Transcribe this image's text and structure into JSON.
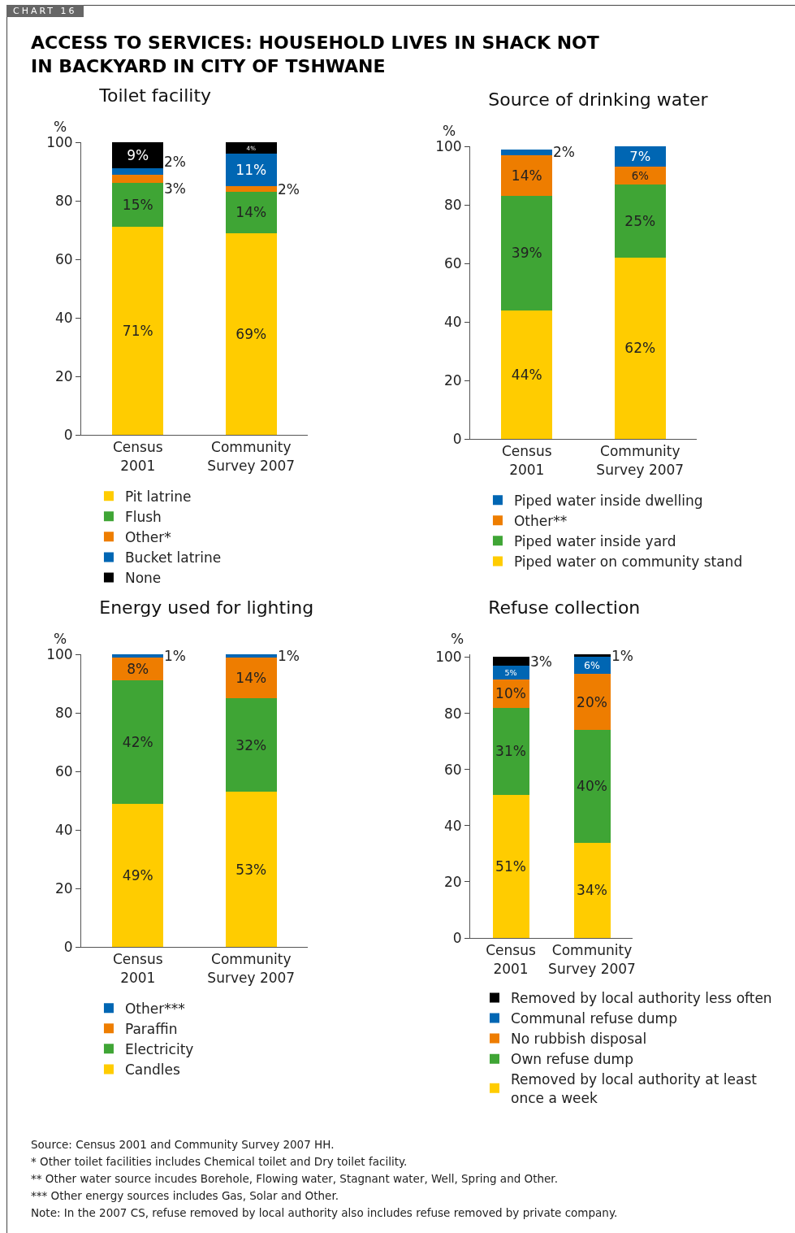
{
  "chart_data": [
    {
      "type": "other",
      "title": "ACCESS TO SERVICES: HOUSEHOLD LIVES IN SHACK NOT IN BACKYARD IN CITY OF TSHWANE",
      "annotations": [
        "CHART 16"
      ]
    },
    {
      "type": "bar",
      "stacked": true,
      "title": "Toilet facility",
      "ylabel": "%",
      "categories": [
        "Census\n2001",
        "Community\nSurvey 2007"
      ],
      "ylim": [
        0,
        100
      ],
      "yticks": [
        0,
        20,
        40,
        60,
        80,
        100
      ],
      "legend": "bottom",
      "series": [
        {
          "name": "Pit latrine",
          "color": "#ffcc00",
          "values": [
            71,
            69
          ],
          "value_labels": [
            "71%",
            "69%"
          ]
        },
        {
          "name": "Flush",
          "color": "#3fa535",
          "values": [
            15,
            14
          ],
          "value_labels": [
            "15%",
            "14%"
          ]
        },
        {
          "name": "Other*",
          "color": "#ee7d00",
          "values": [
            3,
            2
          ],
          "value_labels": [
            "3%",
            "2%"
          ]
        },
        {
          "name": "Bucket latrine",
          "color": "#0066b3",
          "values": [
            2,
            11
          ],
          "value_labels": [
            "2%",
            "11%"
          ]
        },
        {
          "name": "None",
          "color": "#000000",
          "values": [
            9,
            4
          ],
          "value_labels": [
            "9%",
            "4%"
          ]
        }
      ]
    },
    {
      "type": "bar",
      "stacked": true,
      "title": "Source of drinking water",
      "ylabel": "%",
      "categories": [
        "Census\n2001",
        "Community\nSurvey 2007"
      ],
      "ylim": [
        0,
        100
      ],
      "yticks": [
        0,
        20,
        40,
        60,
        80,
        100
      ],
      "legend": "bottom",
      "series": [
        {
          "name": "Piped water on community stand",
          "color": "#ffcc00",
          "values": [
            44,
            62
          ],
          "value_labels": [
            "44%",
            "62%"
          ]
        },
        {
          "name": "Piped water inside yard",
          "color": "#3fa535",
          "values": [
            39,
            25
          ],
          "value_labels": [
            "39%",
            "25%"
          ]
        },
        {
          "name": "Other**",
          "color": "#ee7d00",
          "values": [
            14,
            6
          ],
          "value_labels": [
            "14%",
            "6%"
          ]
        },
        {
          "name": "Piped water inside dwelling",
          "color": "#0066b3",
          "values": [
            2,
            7
          ],
          "value_labels": [
            "2%",
            "7%"
          ]
        }
      ]
    },
    {
      "type": "bar",
      "stacked": true,
      "title": "Energy used for lighting",
      "ylabel": "%",
      "categories": [
        "Census\n2001",
        "Community\nSurvey 2007"
      ],
      "ylim": [
        0,
        100
      ],
      "yticks": [
        0,
        20,
        40,
        60,
        80,
        100
      ],
      "legend": "bottom",
      "series": [
        {
          "name": "Candles",
          "color": "#ffcc00",
          "values": [
            49,
            53
          ],
          "value_labels": [
            "49%",
            "53%"
          ]
        },
        {
          "name": "Electricity",
          "color": "#3fa535",
          "values": [
            42,
            32
          ],
          "value_labels": [
            "42%",
            "32%"
          ]
        },
        {
          "name": "Paraffin",
          "color": "#ee7d00",
          "values": [
            8,
            14
          ],
          "value_labels": [
            "8%",
            "14%"
          ]
        },
        {
          "name": "Other***",
          "color": "#0066b3",
          "values": [
            1,
            1
          ],
          "value_labels": [
            "1%",
            "1%"
          ]
        }
      ]
    },
    {
      "type": "bar",
      "stacked": true,
      "title": "Refuse collection",
      "ylabel": "%",
      "categories": [
        "Census\n2001",
        "Community\nSurvey 2007"
      ],
      "ylim": [
        0,
        101
      ],
      "yticks": [
        0,
        20,
        40,
        60,
        80,
        100
      ],
      "legend": "bottom",
      "series": [
        {
          "name": "Removed by local authority at least\nonce a week",
          "color": "#ffcc00",
          "values": [
            51,
            34
          ],
          "value_labels": [
            "51%",
            "34%"
          ]
        },
        {
          "name": "Own refuse dump",
          "color": "#3fa535",
          "values": [
            31,
            40
          ],
          "value_labels": [
            "31%",
            "40%"
          ]
        },
        {
          "name": "No rubbish disposal",
          "color": "#ee7d00",
          "values": [
            10,
            20
          ],
          "value_labels": [
            "10%",
            "20%"
          ]
        },
        {
          "name": "Communal refuse dump",
          "color": "#0066b3",
          "values": [
            5,
            6
          ],
          "value_labels": [
            "5%",
            "6%"
          ]
        },
        {
          "name": "Removed by local authority less often",
          "color": "#000000",
          "values": [
            3,
            1
          ],
          "value_labels": [
            "3%",
            "1%"
          ]
        }
      ]
    },
    {
      "type": "other",
      "annotations": [
        "Source: Census 2001 and Community Survey 2007 HH.",
        "* Other toilet facilities includes Chemical toilet and Dry toilet facility.",
        "** Other water source incudes Borehole, Flowing water, Stagnant water, Well, Spring and Other.",
        "*** Other energy sources includes Gas, Solar and Other.",
        "Note: In the 2007 CS, refuse removed by local authority also includes refuse removed by private company."
      ]
    }
  ]
}
